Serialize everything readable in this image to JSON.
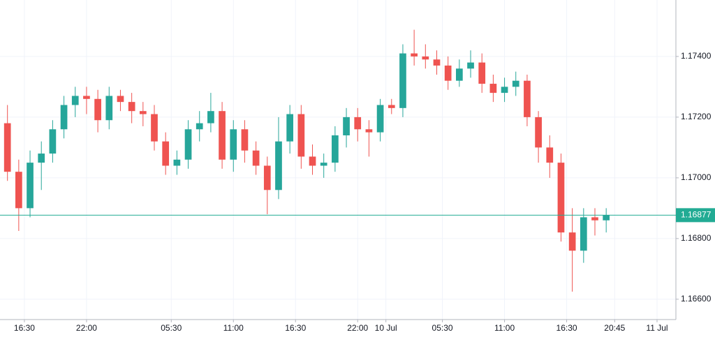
{
  "chart_data": {
    "type": "candlestick",
    "x": [
      0,
      1,
      2,
      3,
      4,
      5,
      6,
      7,
      8,
      9,
      10,
      11,
      12,
      13,
      14,
      15,
      16,
      17,
      18,
      19,
      20,
      21,
      22,
      23,
      24,
      25,
      26,
      27,
      28,
      29,
      30,
      31,
      32,
      33,
      34,
      35,
      36,
      37,
      38,
      39,
      40,
      41,
      42,
      43,
      44,
      45,
      46,
      47,
      48,
      49,
      50,
      51,
      52,
      53
    ],
    "open": [
      1.1718,
      1.1702,
      1.169,
      1.1705,
      1.1708,
      1.1716,
      1.1724,
      1.1727,
      1.1726,
      1.1719,
      1.1727,
      1.1725,
      1.1722,
      1.1721,
      1.1712,
      1.1704,
      1.1706,
      1.1716,
      1.1718,
      1.1722,
      1.1706,
      1.1716,
      1.1709,
      1.1704,
      1.1696,
      1.1712,
      1.1721,
      1.1707,
      1.1704,
      1.1705,
      1.1714,
      1.172,
      1.1716,
      1.1715,
      1.1724,
      1.1723,
      1.1741,
      1.174,
      1.1739,
      1.1737,
      1.1732,
      1.1736,
      1.1738,
      1.1731,
      1.1728,
      1.173,
      1.1732,
      1.172,
      1.171,
      1.1705,
      1.1682,
      1.1676,
      1.1687,
      1.1686
    ],
    "high": [
      1.1724,
      1.1706,
      1.1709,
      1.1712,
      1.1719,
      1.1727,
      1.173,
      1.173,
      1.1729,
      1.173,
      1.1729,
      1.1728,
      1.1725,
      1.1724,
      1.1715,
      1.1709,
      1.1719,
      1.1722,
      1.1728,
      1.1725,
      1.1719,
      1.1719,
      1.1712,
      1.1707,
      1.172,
      1.1724,
      1.1724,
      1.1711,
      1.1708,
      1.1717,
      1.1723,
      1.1723,
      1.1719,
      1.1726,
      1.1726,
      1.1744,
      1.17488,
      1.1744,
      1.1742,
      1.174,
      1.1739,
      1.1742,
      1.1741,
      1.1734,
      1.1733,
      1.1735,
      1.1734,
      1.1722,
      1.1714,
      1.1708,
      1.169,
      1.169,
      1.169,
      1.169
    ],
    "low": [
      1.1699,
      1.16825,
      1.1687,
      1.1696,
      1.1705,
      1.1713,
      1.172,
      1.1721,
      1.1715,
      1.1716,
      1.1722,
      1.1718,
      1.1717,
      1.1709,
      1.1701,
      1.1701,
      1.1703,
      1.1712,
      1.1715,
      1.1703,
      1.1702,
      1.1705,
      1.1701,
      1.1688,
      1.1693,
      1.1708,
      1.1703,
      1.1701,
      1.17,
      1.1702,
      1.171,
      1.1712,
      1.1707,
      1.1712,
      1.1721,
      1.172,
      1.1737,
      1.1736,
      1.1734,
      1.1729,
      1.173,
      1.1733,
      1.1728,
      1.1725,
      1.1725,
      1.1727,
      1.1717,
      1.1705,
      1.17,
      1.1679,
      1.16625,
      1.1672,
      1.1681,
      1.1682
    ],
    "close": [
      1.1702,
      1.169,
      1.1705,
      1.1708,
      1.1716,
      1.1724,
      1.1727,
      1.1726,
      1.1719,
      1.1727,
      1.1725,
      1.1722,
      1.1721,
      1.1712,
      1.1704,
      1.1706,
      1.1716,
      1.1718,
      1.1722,
      1.1706,
      1.1716,
      1.1709,
      1.1704,
      1.1696,
      1.1712,
      1.1721,
      1.1707,
      1.1704,
      1.1705,
      1.1714,
      1.172,
      1.1716,
      1.1715,
      1.1724,
      1.1723,
      1.1741,
      1.174,
      1.1739,
      1.1737,
      1.1732,
      1.1736,
      1.1738,
      1.1731,
      1.1728,
      1.173,
      1.1732,
      1.172,
      1.171,
      1.1705,
      1.1682,
      1.1676,
      1.1687,
      1.1686,
      1.16877
    ],
    "up_color": "#26a69a",
    "down_color": "#ef5350",
    "last_price": 1.16877,
    "last_price_color": "#22ab94",
    "xlim": [
      -0.16,
      59.67
    ],
    "xticks": [
      {
        "value": 2,
        "label": "16:30"
      },
      {
        "value": 7.5,
        "label": "22:00"
      },
      {
        "value": 15,
        "label": "05:30"
      },
      {
        "value": 20.5,
        "label": "11:00"
      },
      {
        "value": 26,
        "label": "16:30"
      },
      {
        "value": 31.5,
        "label": "22:00"
      },
      {
        "value": 34,
        "label": "10 Jul"
      },
      {
        "value": 39,
        "label": "05:30"
      },
      {
        "value": 44.5,
        "label": "11:00"
      },
      {
        "value": 50,
        "label": "16:30"
      },
      {
        "value": 54.25,
        "label": "20:45"
      },
      {
        "value": 58,
        "label": "11 Jul"
      }
    ],
    "ylim": [
      1.16533,
      1.17586
    ],
    "yticks": [
      {
        "value": 1.166,
        "label": "1.16600"
      },
      {
        "value": 1.168,
        "label": "1.16800"
      },
      {
        "value": 1.17,
        "label": "1.17000"
      },
      {
        "value": 1.172,
        "label": "1.17200"
      },
      {
        "value": 1.174,
        "label": "1.17400"
      }
    ],
    "grid": true
  }
}
